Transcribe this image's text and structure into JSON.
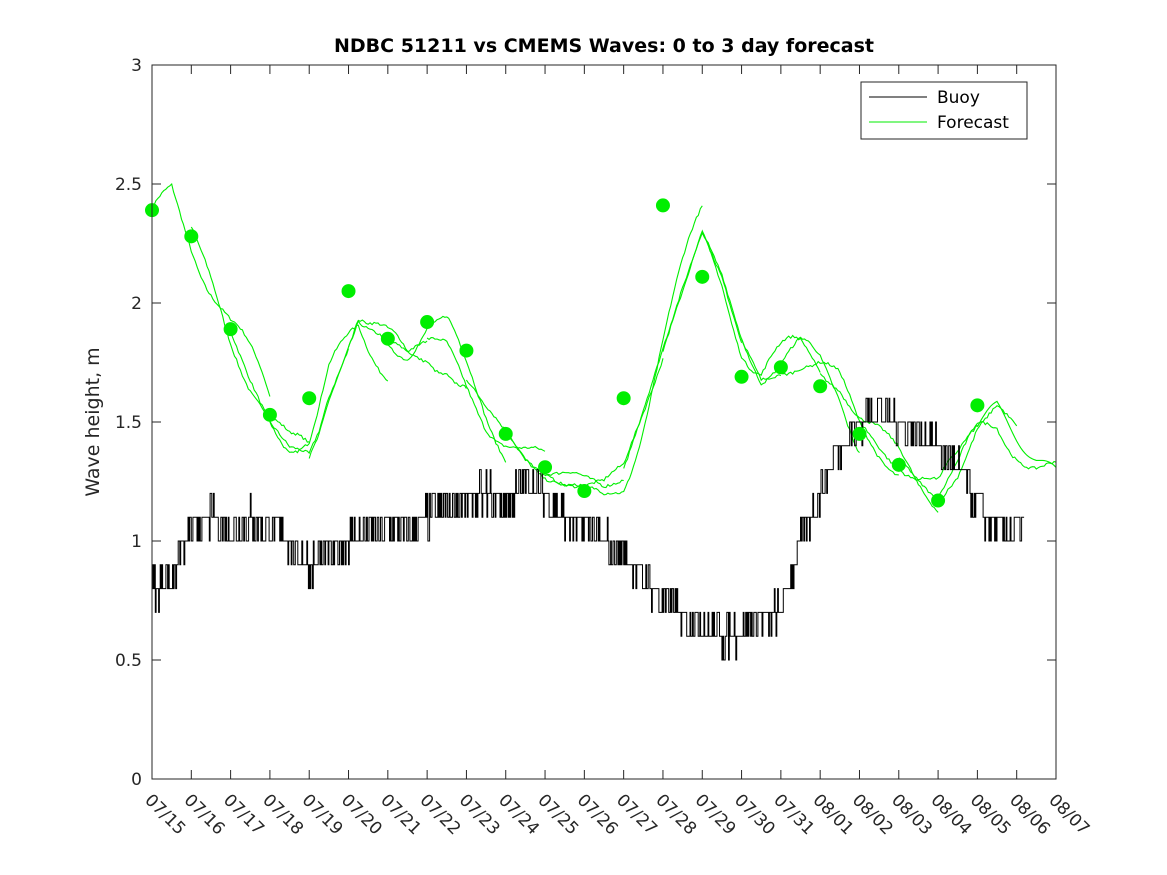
{
  "chart_data": {
    "type": "line",
    "title": "NDBC 51211 vs CMEMS Waves: 0 to 3 day forecast",
    "xlabel": "",
    "ylabel": "Wave height, m",
    "ylim": [
      0,
      3
    ],
    "yticks": [
      "0",
      "0.5",
      "1",
      "1.5",
      "2",
      "2.5",
      "3"
    ],
    "xlim_days": [
      0,
      23
    ],
    "xticks": [
      "07/15",
      "07/16",
      "07/17",
      "07/18",
      "07/19",
      "07/20",
      "07/21",
      "07/22",
      "07/23",
      "07/24",
      "07/25",
      "07/26",
      "07/27",
      "07/28",
      "07/29",
      "07/30",
      "07/31",
      "08/01",
      "08/02",
      "08/03",
      "08/04",
      "08/05",
      "08/06",
      "08/07"
    ],
    "legend": {
      "position": "top-right",
      "entries": [
        "Buoy",
        "Forecast"
      ]
    },
    "colors": {
      "buoy": "#000000",
      "forecast": "#00ee00"
    },
    "buoy": {
      "name": "Buoy",
      "x": [
        0.0,
        0.5,
        1.0,
        1.5,
        2.0,
        2.5,
        3.0,
        3.5,
        4.0,
        4.5,
        5.0,
        5.5,
        6.0,
        6.5,
        7.0,
        7.5,
        8.0,
        8.5,
        9.0,
        9.5,
        10.0,
        10.5,
        11.0,
        11.5,
        12.0,
        12.5,
        13.0,
        13.5,
        14.0,
        14.5,
        15.0,
        15.5,
        16.0,
        16.5,
        17.0,
        17.5,
        18.0,
        18.5,
        19.0,
        19.5,
        20.0,
        20.5,
        21.0,
        21.5,
        22.0
      ],
      "y": [
        0.8,
        0.85,
        1.05,
        1.1,
        1.05,
        1.1,
        1.05,
        1.0,
        0.9,
        0.95,
        1.0,
        1.05,
        1.05,
        1.05,
        1.1,
        1.15,
        1.15,
        1.2,
        1.15,
        1.25,
        1.2,
        1.1,
        1.05,
        1.0,
        0.95,
        0.85,
        0.75,
        0.7,
        0.65,
        0.6,
        0.62,
        0.68,
        0.7,
        1.0,
        1.2,
        1.4,
        1.5,
        1.55,
        1.5,
        1.45,
        1.4,
        1.3,
        1.15,
        1.05,
        1.05
      ]
    },
    "buoy_noise": 0.07,
    "forecast": {
      "name": "Forecast",
      "x": [
        0.0,
        0.5,
        1.0,
        1.5,
        2.0,
        2.5,
        3.0,
        3.5,
        4.0,
        4.25,
        4.5,
        5.0,
        5.25,
        5.5,
        6.0,
        6.5,
        7.0,
        7.5,
        8.0,
        8.5,
        9.0,
        9.5,
        10.0,
        10.5,
        11.0,
        11.5,
        12.0,
        12.5,
        13.0,
        13.5,
        14.0,
        14.5,
        15.0,
        15.5,
        16.0,
        16.5,
        17.0,
        17.5,
        18.0,
        18.5,
        19.0,
        19.5,
        20.0,
        20.5,
        21.0,
        21.5,
        22.0,
        22.5,
        23.0
      ],
      "y": [
        2.4,
        2.52,
        2.32,
        2.12,
        1.88,
        1.68,
        1.5,
        1.38,
        1.35,
        1.45,
        1.6,
        1.82,
        1.92,
        1.88,
        1.82,
        1.78,
        1.85,
        1.82,
        1.68,
        1.56,
        1.46,
        1.36,
        1.28,
        1.24,
        1.22,
        1.22,
        1.3,
        1.55,
        1.8,
        2.05,
        2.3,
        2.12,
        1.85,
        1.68,
        1.7,
        1.72,
        1.7,
        1.64,
        1.5,
        1.42,
        1.35,
        1.25,
        1.18,
        1.3,
        1.48,
        1.55,
        1.45,
        1.35,
        1.27
      ]
    },
    "forecast_markers": {
      "x": [
        0,
        1,
        2,
        3,
        4,
        5,
        6,
        7,
        8,
        9,
        10,
        11,
        12,
        13,
        14,
        15,
        16,
        17,
        18,
        19,
        20,
        21
      ],
      "y": [
        2.39,
        2.28,
        1.89,
        1.53,
        1.6,
        2.05,
        1.85,
        1.92,
        1.8,
        1.45,
        1.31,
        1.21,
        1.6,
        2.41,
        2.11,
        1.69,
        1.73,
        1.65,
        1.45,
        1.32,
        1.17,
        1.57
      ]
    }
  }
}
